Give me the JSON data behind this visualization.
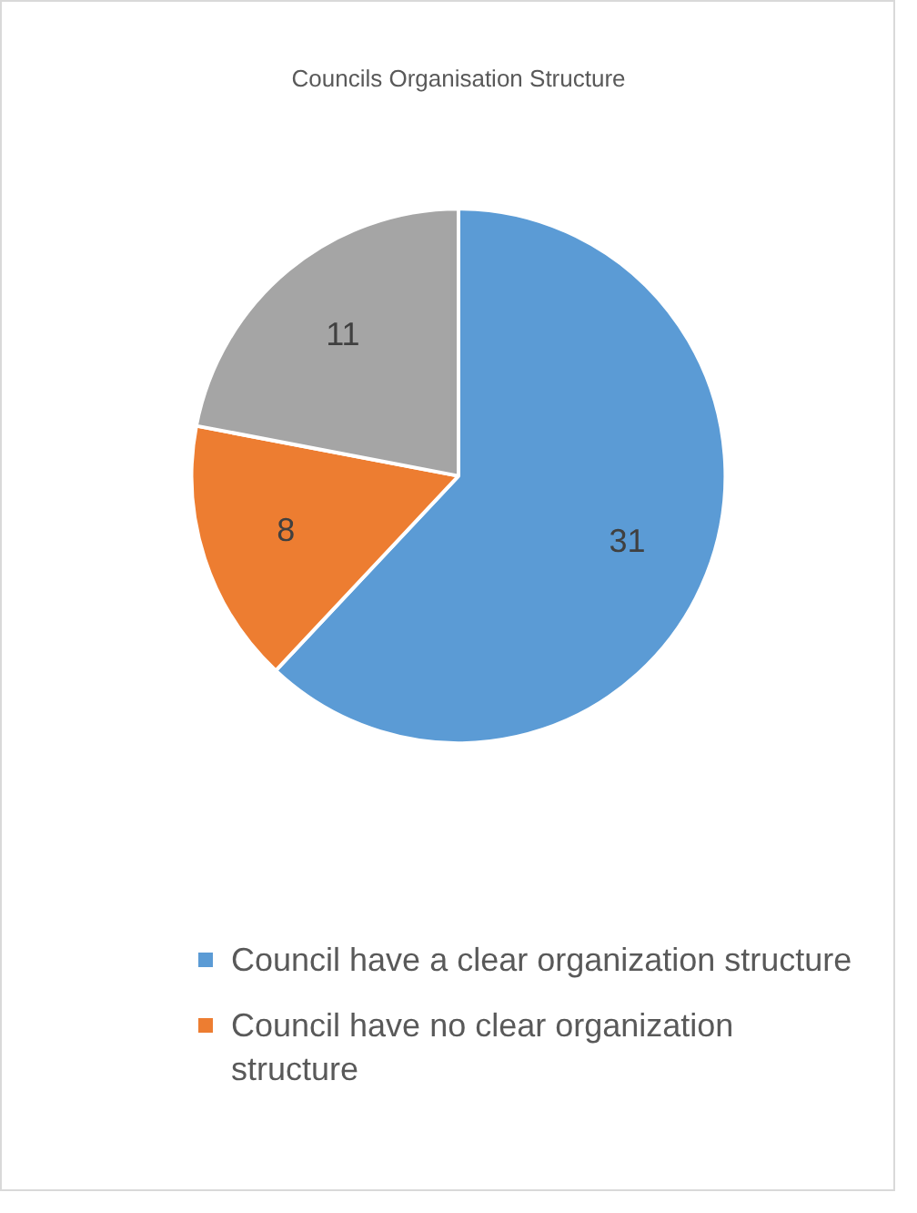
{
  "chart_data": {
    "type": "pie",
    "title": "Councils Organisation Structure",
    "categories": [
      "Council have a clear organization structure",
      "Council have no clear organization structure",
      null
    ],
    "values": [
      31,
      8,
      11
    ],
    "colors": [
      "#5b9bd5",
      "#ed7d31",
      "#a5a5a5"
    ],
    "data_labels": true,
    "legend": "bottom"
  }
}
